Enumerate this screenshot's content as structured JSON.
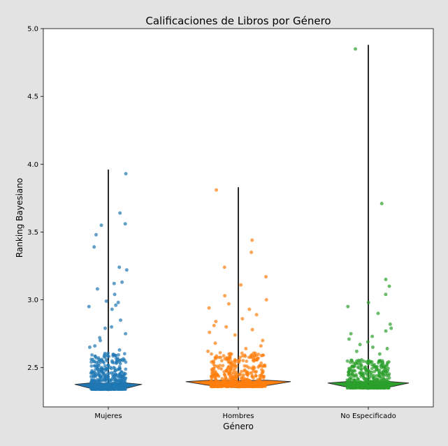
{
  "chart_data": {
    "type": "violin+strip",
    "title": "Calificaciones de Libros por Género",
    "xlabel": "Género",
    "ylabel": "Ranking Bayesiano",
    "ylim": [
      2.21,
      5.0
    ],
    "yticks": [
      2.5,
      3.0,
      3.5,
      4.0,
      4.5,
      5.0
    ],
    "grid": false,
    "categories": [
      "Mujeres",
      "Hombres",
      "No Especificado"
    ],
    "series": [
      {
        "category": "Mujeres",
        "color": "#1f77b4",
        "max": 3.96,
        "min": 2.33,
        "dense_range": [
          2.33,
          2.6
        ],
        "outliers": [
          3.93,
          3.64,
          3.56,
          3.55,
          3.48,
          3.39,
          3.24,
          3.22,
          3.13,
          3.12,
          3.08,
          3.04,
          2.99,
          2.98,
          2.96,
          2.95,
          2.93,
          2.85,
          2.8,
          2.79,
          2.75,
          2.72,
          2.7,
          2.66,
          2.65,
          2.63
        ]
      },
      {
        "category": "Hombres",
        "color": "#ff7f0e",
        "max": 3.83,
        "min": 2.35,
        "dense_range": [
          2.35,
          2.6
        ],
        "outliers": [
          3.81,
          3.44,
          3.35,
          3.24,
          3.17,
          3.11,
          3.03,
          3.0,
          2.97,
          2.94,
          2.93,
          2.89,
          2.86,
          2.84,
          2.81,
          2.8,
          2.78,
          2.76,
          2.74,
          2.7,
          2.68,
          2.66,
          2.64,
          2.62
        ]
      },
      {
        "category": "No Especificado",
        "color": "#2ca02c",
        "max": 4.88,
        "min": 2.34,
        "dense_range": [
          2.34,
          2.55
        ],
        "outliers": [
          4.85,
          3.71,
          3.15,
          3.1,
          3.04,
          2.98,
          2.95,
          2.9,
          2.82,
          2.79,
          2.77,
          2.75,
          2.73,
          2.71,
          2.69,
          2.67,
          2.65,
          2.64,
          2.62,
          2.6
        ]
      }
    ]
  }
}
